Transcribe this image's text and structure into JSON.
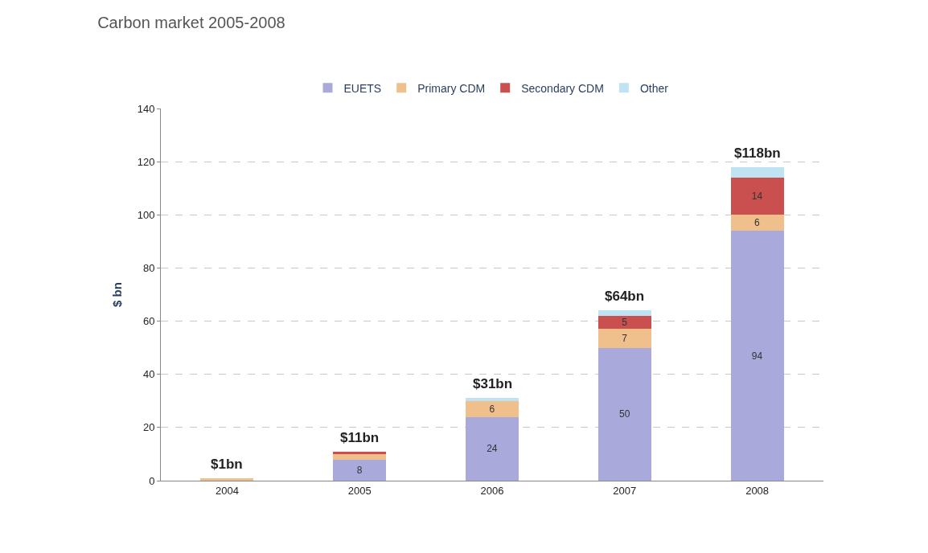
{
  "chart_data": {
    "type": "bar",
    "title": "Carbon market 2005-2008",
    "ylabel": "$ bn",
    "categories": [
      "2004",
      "2005",
      "2006",
      "2007",
      "2008"
    ],
    "stacked": true,
    "series": [
      {
        "name": "EUETS",
        "color": "#a9a9dc",
        "values": [
          0,
          8,
          24,
          50,
          94
        ],
        "value_labels": [
          null,
          "8",
          "24",
          "50",
          "94"
        ]
      },
      {
        "name": "Primary CDM",
        "color": "#f0c08c",
        "values": [
          1,
          2,
          6,
          7,
          6
        ],
        "value_labels": [
          null,
          null,
          "6",
          "7",
          "6"
        ]
      },
      {
        "name": "Secondary CDM",
        "color": "#c9504f",
        "values": [
          0,
          1,
          0,
          5,
          14
        ],
        "value_labels": [
          null,
          null,
          null,
          "5",
          "14"
        ]
      },
      {
        "name": "Other",
        "color": "#bfe3f3",
        "values": [
          0,
          null,
          1,
          2,
          4
        ],
        "value_labels": [
          null,
          null,
          null,
          null,
          null
        ]
      }
    ],
    "totals": [
      "$1bn",
      "$11bn",
      "$31bn",
      "$64bn",
      "$118bn"
    ],
    "ylim": [
      0,
      140
    ],
    "yticks": [
      0,
      20,
      40,
      60,
      80,
      100,
      120,
      140
    ],
    "grid": "y",
    "legend": "top"
  }
}
